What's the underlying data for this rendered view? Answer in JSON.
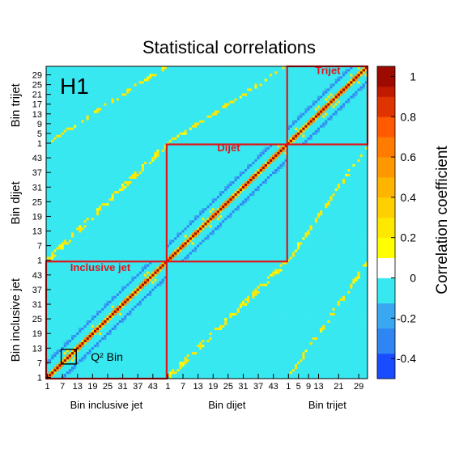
{
  "chart_data": {
    "type": "heatmap",
    "title": "Statistical correlations",
    "experiment_label": "H1",
    "colorbar": {
      "label": "Correlation coefficient",
      "ticks": [
        1,
        0.8,
        0.6,
        0.4,
        0.2,
        0,
        -0.2,
        -0.4
      ],
      "range": [
        -0.5,
        1.05
      ],
      "bands": [
        {
          "from": -0.5,
          "to": -0.375,
          "color": "#1a4cff"
        },
        {
          "from": -0.375,
          "to": -0.25,
          "color": "#2f86f2"
        },
        {
          "from": -0.25,
          "to": -0.125,
          "color": "#3aa8f0"
        },
        {
          "from": -0.125,
          "to": 0.0,
          "color": "#37e8f0"
        },
        {
          "from": 0.0,
          "to": 0.1,
          "color": "#ffffff"
        },
        {
          "from": 0.1,
          "to": 0.2,
          "color": "#ffff00"
        },
        {
          "from": 0.2,
          "to": 0.3,
          "color": "#ffe800"
        },
        {
          "from": 0.3,
          "to": 0.4,
          "color": "#ffd000"
        },
        {
          "from": 0.4,
          "to": 0.5,
          "color": "#ffb400"
        },
        {
          "from": 0.5,
          "to": 0.6,
          "color": "#ff9800"
        },
        {
          "from": 0.6,
          "to": 0.7,
          "color": "#ff7c00"
        },
        {
          "from": 0.7,
          "to": 0.8,
          "color": "#ff5a00"
        },
        {
          "from": 0.8,
          "to": 0.9,
          "color": "#e03400"
        },
        {
          "from": 0.9,
          "to": 0.95,
          "color": "#c01a00"
        },
        {
          "from": 0.95,
          "to": 1.05,
          "color": "#9c0a00"
        }
      ]
    },
    "blocks": [
      {
        "name": "Inclusive jet",
        "xlabel": "Bin inclusive jet",
        "ylabel": "Bin inclusive jet",
        "n_bins": 48,
        "tick_labels": [
          "1",
          "7",
          "13",
          "19",
          "25",
          "31",
          "37",
          "43"
        ]
      },
      {
        "name": "Dijet",
        "xlabel": "Bin dijet",
        "ylabel": "Bin dijet",
        "n_bins": 48,
        "tick_labels": [
          "1",
          "7",
          "13",
          "19",
          "25",
          "31",
          "37",
          "43"
        ]
      },
      {
        "name": "Trijet",
        "xlabel": "Bin trijet",
        "ylabel": "Bin trijet",
        "n_bins": 32,
        "tick_labels": [
          "1",
          "5",
          "9",
          "13",
          "21",
          "29"
        ],
        "y_tick_labels": [
          "1",
          "5",
          "9",
          "13",
          "17",
          "21",
          "25",
          "29"
        ]
      }
    ],
    "highlighted_boxes": [
      "Inclusive jet",
      "Dijet",
      "Trijet"
    ],
    "annotation": {
      "text": "Q² Bin",
      "bin_range": [
        7,
        12
      ]
    },
    "x_tick_label_text": "1   7  13  19  25  31  37  43  1   7  13  19  25  31  37  43  1  5 913 21 29"
  }
}
